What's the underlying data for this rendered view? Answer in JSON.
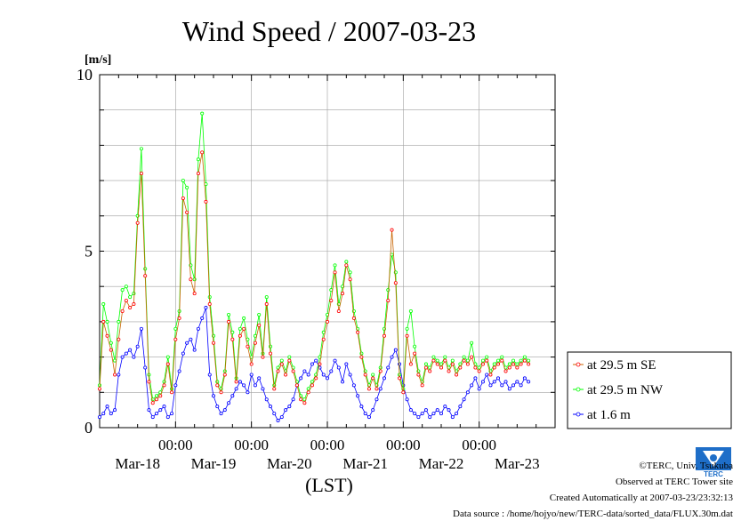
{
  "chart_data": {
    "type": "line",
    "title": "Wind Speed / 2007-03-23",
    "ylabel": "[m/s]",
    "xlabel": "(LST)",
    "ylim": [
      0,
      10
    ],
    "xlim": [
      0,
      6
    ],
    "yticks": [
      0,
      5,
      10
    ],
    "x_tick_top": [
      "00:00",
      "00:00",
      "00:00",
      "00:00",
      "00:00"
    ],
    "x_tick_top_pos": [
      1,
      2,
      3,
      4,
      5
    ],
    "x_tick_bottom": [
      "Mar-18",
      "Mar-19",
      "Mar-20",
      "Mar-21",
      "Mar-22",
      "Mar-23"
    ],
    "x_tick_bottom_pos": [
      0.5,
      1.5,
      2.5,
      3.5,
      4.5,
      5.5
    ],
    "legend_position": "right-bottom outside",
    "series": [
      {
        "name": "at 29.5 m SE",
        "color": "#ff0000",
        "line_color": "#c86400",
        "x": [
          0.0,
          0.05,
          0.1,
          0.15,
          0.2,
          0.25,
          0.3,
          0.35,
          0.4,
          0.45,
          0.5,
          0.55,
          0.6,
          0.65,
          0.7,
          0.75,
          0.8,
          0.85,
          0.9,
          0.95,
          1.0,
          1.05,
          1.1,
          1.15,
          1.2,
          1.25,
          1.3,
          1.35,
          1.4,
          1.45,
          1.5,
          1.55,
          1.6,
          1.65,
          1.7,
          1.75,
          1.8,
          1.85,
          1.9,
          1.95,
          2.0,
          2.05,
          2.1,
          2.15,
          2.2,
          2.25,
          2.3,
          2.35,
          2.4,
          2.45,
          2.5,
          2.55,
          2.6,
          2.65,
          2.7,
          2.75,
          2.8,
          2.85,
          2.9,
          2.95,
          3.0,
          3.05,
          3.1,
          3.15,
          3.2,
          3.25,
          3.3,
          3.35,
          3.4,
          3.45,
          3.5,
          3.55,
          3.6,
          3.65,
          3.7,
          3.75,
          3.8,
          3.85,
          3.9,
          3.95,
          4.0,
          4.05,
          4.1,
          4.15,
          4.2,
          4.25,
          4.3,
          4.35,
          4.4,
          4.45,
          4.5,
          4.55,
          4.6,
          4.65,
          4.7,
          4.75,
          4.8,
          4.85,
          4.9,
          4.95,
          5.0,
          5.05,
          5.1,
          5.15,
          5.2,
          5.25,
          5.3,
          5.35,
          5.4,
          5.45,
          5.5,
          5.55,
          5.6,
          5.65
        ],
        "y": [
          1.1,
          3.0,
          2.6,
          2.2,
          1.5,
          2.5,
          3.3,
          3.6,
          3.4,
          3.5,
          5.8,
          7.2,
          4.3,
          1.3,
          0.7,
          0.8,
          0.9,
          1.2,
          1.8,
          1.0,
          2.5,
          3.1,
          6.5,
          6.1,
          4.2,
          3.8,
          7.2,
          7.8,
          6.4,
          3.5,
          2.4,
          1.2,
          1.0,
          1.5,
          3.0,
          2.5,
          1.3,
          2.6,
          2.8,
          2.3,
          1.8,
          2.4,
          2.9,
          2.0,
          3.5,
          2.1,
          1.1,
          1.6,
          1.8,
          1.5,
          1.9,
          1.6,
          1.2,
          0.8,
          0.7,
          1.0,
          1.2,
          1.4,
          1.8,
          2.5,
          3.0,
          3.6,
          4.4,
          3.3,
          3.8,
          4.6,
          4.2,
          3.1,
          2.7,
          2.0,
          1.5,
          1.1,
          1.4,
          1.1,
          1.6,
          2.6,
          3.6,
          5.6,
          4.1,
          1.4,
          1.0,
          2.6,
          1.8,
          2.1,
          1.5,
          1.2,
          1.7,
          1.6,
          1.9,
          1.8,
          1.7,
          1.9,
          1.6,
          1.8,
          1.5,
          1.7,
          1.9,
          1.8,
          2.0,
          1.7,
          1.6,
          1.8,
          1.9,
          1.5,
          1.7,
          1.8,
          1.9,
          1.6,
          1.7,
          1.8,
          1.7,
          1.8,
          1.9,
          1.8
        ]
      },
      {
        "name": "at 29.5 m NW",
        "color": "#00ff00",
        "line_color": "#00ff00",
        "x": [
          0.0,
          0.05,
          0.1,
          0.15,
          0.2,
          0.25,
          0.3,
          0.35,
          0.4,
          0.45,
          0.5,
          0.55,
          0.6,
          0.65,
          0.7,
          0.75,
          0.8,
          0.85,
          0.9,
          0.95,
          1.0,
          1.05,
          1.1,
          1.15,
          1.2,
          1.25,
          1.3,
          1.35,
          1.4,
          1.45,
          1.5,
          1.55,
          1.6,
          1.65,
          1.7,
          1.75,
          1.8,
          1.85,
          1.9,
          1.95,
          2.0,
          2.05,
          2.1,
          2.15,
          2.2,
          2.25,
          2.3,
          2.35,
          2.4,
          2.45,
          2.5,
          2.55,
          2.6,
          2.65,
          2.7,
          2.75,
          2.8,
          2.85,
          2.9,
          2.95,
          3.0,
          3.05,
          3.1,
          3.15,
          3.2,
          3.25,
          3.3,
          3.35,
          3.4,
          3.45,
          3.5,
          3.55,
          3.6,
          3.65,
          3.7,
          3.75,
          3.8,
          3.85,
          3.9,
          3.95,
          4.0,
          4.05,
          4.1,
          4.15,
          4.2,
          4.25,
          4.3,
          4.35,
          4.4,
          4.45,
          4.5,
          4.55,
          4.6,
          4.65,
          4.7,
          4.75,
          4.8,
          4.85,
          4.9,
          4.95,
          5.0,
          5.05,
          5.1,
          5.15,
          5.2,
          5.25,
          5.3,
          5.35,
          5.4,
          5.45,
          5.5,
          5.55,
          5.6,
          5.65
        ],
        "y": [
          1.2,
          3.5,
          3.0,
          2.4,
          1.9,
          3.0,
          3.9,
          4.0,
          3.7,
          3.8,
          6.0,
          7.9,
          4.5,
          1.5,
          0.8,
          0.9,
          1.0,
          1.3,
          2.0,
          1.1,
          2.8,
          3.3,
          7.0,
          6.8,
          4.6,
          4.2,
          7.6,
          8.9,
          6.9,
          3.7,
          2.6,
          1.3,
          1.1,
          1.6,
          3.2,
          2.7,
          1.4,
          2.8,
          3.1,
          2.5,
          2.0,
          2.6,
          3.2,
          2.1,
          3.7,
          2.3,
          1.2,
          1.7,
          1.9,
          1.6,
          2.0,
          1.7,
          1.3,
          0.9,
          0.8,
          1.1,
          1.3,
          1.5,
          2.0,
          2.7,
          3.2,
          3.9,
          4.6,
          3.5,
          4.0,
          4.7,
          4.4,
          3.3,
          2.8,
          2.1,
          1.6,
          1.2,
          1.5,
          1.2,
          1.7,
          2.8,
          3.9,
          4.9,
          4.4,
          1.5,
          1.1,
          2.8,
          3.3,
          2.3,
          1.6,
          1.3,
          1.8,
          1.7,
          2.0,
          1.9,
          1.8,
          2.0,
          1.7,
          1.9,
          1.6,
          1.8,
          2.0,
          1.9,
          2.4,
          1.8,
          1.7,
          1.9,
          2.0,
          1.6,
          1.8,
          1.9,
          2.0,
          1.7,
          1.8,
          1.9,
          1.8,
          1.9,
          2.0,
          1.9
        ]
      },
      {
        "name": "at 1.6 m",
        "color": "#0000ff",
        "line_color": "#0000ff",
        "x": [
          0.0,
          0.05,
          0.1,
          0.15,
          0.2,
          0.25,
          0.3,
          0.35,
          0.4,
          0.45,
          0.5,
          0.55,
          0.6,
          0.65,
          0.7,
          0.75,
          0.8,
          0.85,
          0.9,
          0.95,
          1.0,
          1.05,
          1.1,
          1.15,
          1.2,
          1.25,
          1.3,
          1.35,
          1.4,
          1.45,
          1.5,
          1.55,
          1.6,
          1.65,
          1.7,
          1.75,
          1.8,
          1.85,
          1.9,
          1.95,
          2.0,
          2.05,
          2.1,
          2.15,
          2.2,
          2.25,
          2.3,
          2.35,
          2.4,
          2.45,
          2.5,
          2.55,
          2.6,
          2.65,
          2.7,
          2.75,
          2.8,
          2.85,
          2.9,
          2.95,
          3.0,
          3.05,
          3.1,
          3.15,
          3.2,
          3.25,
          3.3,
          3.35,
          3.4,
          3.45,
          3.5,
          3.55,
          3.6,
          3.65,
          3.7,
          3.75,
          3.8,
          3.85,
          3.9,
          3.95,
          4.0,
          4.05,
          4.1,
          4.15,
          4.2,
          4.25,
          4.3,
          4.35,
          4.4,
          4.45,
          4.5,
          4.55,
          4.6,
          4.65,
          4.7,
          4.75,
          4.8,
          4.85,
          4.9,
          4.95,
          5.0,
          5.05,
          5.1,
          5.15,
          5.2,
          5.25,
          5.3,
          5.35,
          5.4,
          5.45,
          5.5,
          5.55,
          5.6,
          5.65
        ],
        "y": [
          0.3,
          0.4,
          0.6,
          0.4,
          0.5,
          1.5,
          2.0,
          2.1,
          2.2,
          2.0,
          2.3,
          2.8,
          1.7,
          0.5,
          0.3,
          0.4,
          0.5,
          0.6,
          0.3,
          0.4,
          1.2,
          1.6,
          2.1,
          2.4,
          2.5,
          2.2,
          2.8,
          3.1,
          3.4,
          1.5,
          0.9,
          0.6,
          0.4,
          0.5,
          0.7,
          0.9,
          1.1,
          1.3,
          1.2,
          1.0,
          1.5,
          1.2,
          1.4,
          1.1,
          0.8,
          0.6,
          0.4,
          0.2,
          0.3,
          0.5,
          0.6,
          0.8,
          1.2,
          1.4,
          1.6,
          1.5,
          1.8,
          1.9,
          1.7,
          1.5,
          1.4,
          1.6,
          1.9,
          1.7,
          1.3,
          1.8,
          1.5,
          1.2,
          0.9,
          0.6,
          0.4,
          0.3,
          0.5,
          0.8,
          1.1,
          1.4,
          1.7,
          2.0,
          2.2,
          1.8,
          1.2,
          0.8,
          0.5,
          0.4,
          0.3,
          0.4,
          0.5,
          0.3,
          0.4,
          0.5,
          0.4,
          0.6,
          0.5,
          0.3,
          0.4,
          0.6,
          0.8,
          1.0,
          1.2,
          1.4,
          1.1,
          1.3,
          1.5,
          1.2,
          1.3,
          1.4,
          1.2,
          1.3,
          1.1,
          1.2,
          1.3,
          1.2,
          1.4,
          1.3
        ]
      }
    ]
  },
  "footer": {
    "copyright": "©TERC, Univ. Tsukuba",
    "site": "Observed at TERC Tower site",
    "created": "Created Automatically at 2007-03-23/23:32:13",
    "source": "Data source : /home/hojyo/new/TERC-data/sorted_data/FLUX.30m.dat"
  },
  "logo": {
    "label": "TERC",
    "color": "#1e6ec8"
  }
}
